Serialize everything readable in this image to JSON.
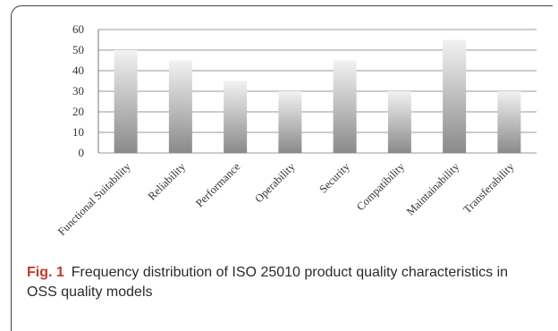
{
  "chart_data": {
    "type": "bar",
    "categories": [
      "Functional Suitability",
      "Reliability",
      "Performance",
      "Operability",
      "Security",
      "Compatibility",
      "Maintainability",
      "Transferability"
    ],
    "values": [
      50,
      45,
      35,
      30,
      45,
      30,
      55,
      30
    ],
    "ylim": [
      0,
      60
    ],
    "yticks": [
      "0",
      "10",
      "20",
      "30",
      "40",
      "50",
      "60"
    ],
    "grid": true,
    "legend": "none",
    "bar_gradient": [
      "#f2f2f2",
      "#8a8a8a"
    ]
  },
  "caption": {
    "label": "Fig. 1",
    "text": "Frequency distribution of ISO 25010 product quality characteristics in OSS quality models"
  }
}
